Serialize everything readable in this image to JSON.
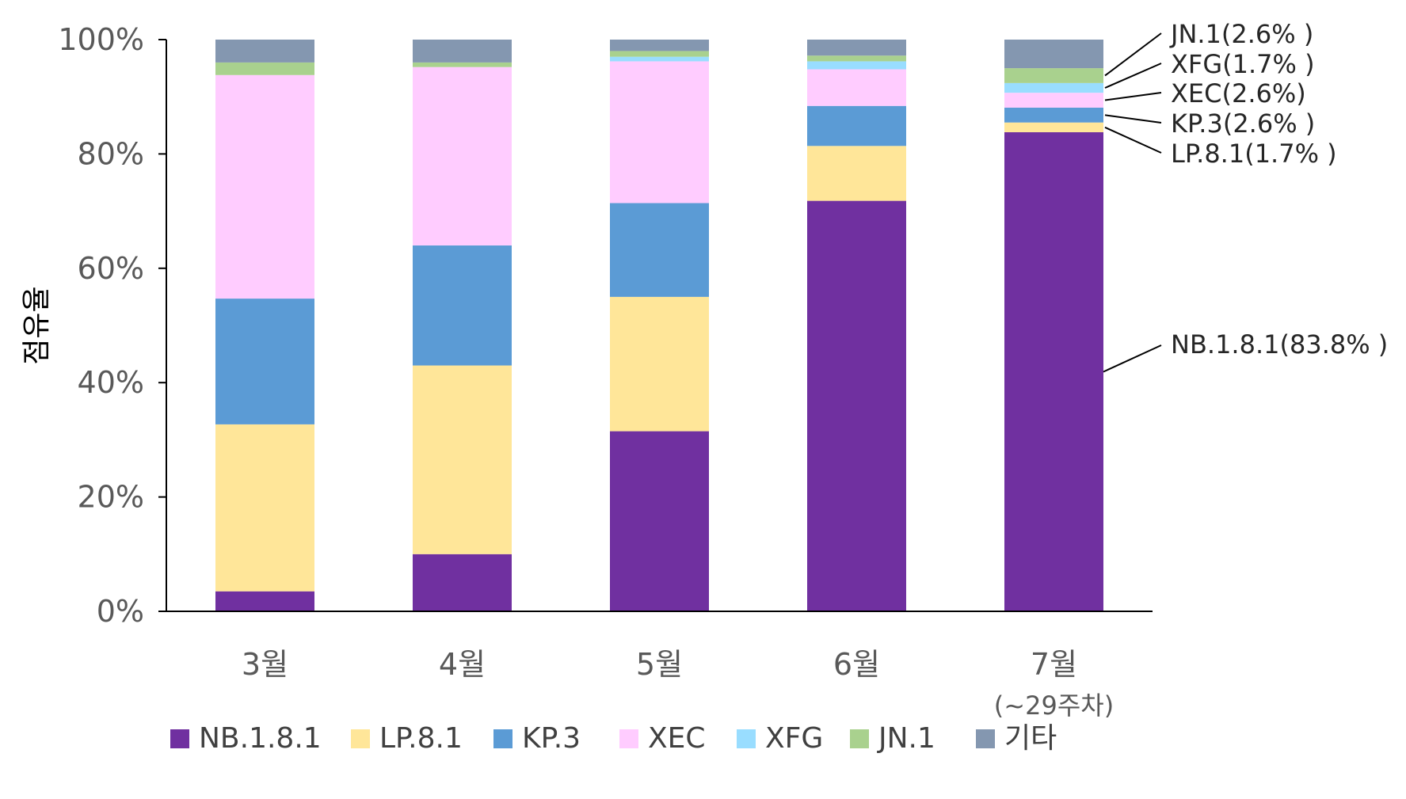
{
  "chart_data": {
    "type": "bar",
    "stacked": true,
    "ylabel": "점유율",
    "xlabel": "",
    "ylim": [
      0,
      100
    ],
    "y_ticks": [
      "0%",
      "20%",
      "40%",
      "60%",
      "80%",
      "100%"
    ],
    "categories": [
      "3월",
      "4월",
      "5월",
      "6월",
      "7월"
    ],
    "category_sublabels": [
      "",
      "",
      "",
      "",
      "(~29주차)"
    ],
    "series": [
      {
        "name": "NB.1.8.1",
        "color": "#7030A0",
        "values": [
          3.5,
          10.0,
          31.5,
          71.8,
          83.8
        ]
      },
      {
        "name": "LP.8.1",
        "color": "#FFE699",
        "values": [
          29.2,
          33.0,
          23.5,
          9.6,
          1.7
        ]
      },
      {
        "name": "KP.3",
        "color": "#5B9BD5",
        "values": [
          22.0,
          21.0,
          16.4,
          7.0,
          2.6
        ]
      },
      {
        "name": "XEC",
        "color": "#FFCCFF",
        "values": [
          39.1,
          31.2,
          24.8,
          6.4,
          2.6
        ]
      },
      {
        "name": "XFG",
        "color": "#99DDFF",
        "values": [
          0.0,
          0.0,
          0.8,
          1.4,
          1.7
        ]
      },
      {
        "name": "JN.1",
        "color": "#A9D18E",
        "values": [
          2.2,
          0.8,
          1.0,
          1.0,
          2.6
        ]
      },
      {
        "name": "기타",
        "color": "#8497B0",
        "values": [
          4.0,
          4.0,
          2.0,
          2.8,
          5.0
        ]
      }
    ],
    "annotations": [
      {
        "text": "JN.1(2.6% )",
        "series": "JN.1",
        "category": "7월"
      },
      {
        "text": "XFG(1.7% )",
        "series": "XFG",
        "category": "7월"
      },
      {
        "text": "XEC(2.6%)",
        "series": "XEC",
        "category": "7월"
      },
      {
        "text": "KP.3(2.6% )",
        "series": "KP.3",
        "category": "7월"
      },
      {
        "text": "LP.8.1(1.7% )",
        "series": "LP.8.1",
        "category": "7월"
      },
      {
        "text": "NB.1.8.1(83.8% )",
        "series": "NB.1.8.1",
        "category": "7월"
      }
    ],
    "legend_position": "bottom",
    "grid": false
  }
}
